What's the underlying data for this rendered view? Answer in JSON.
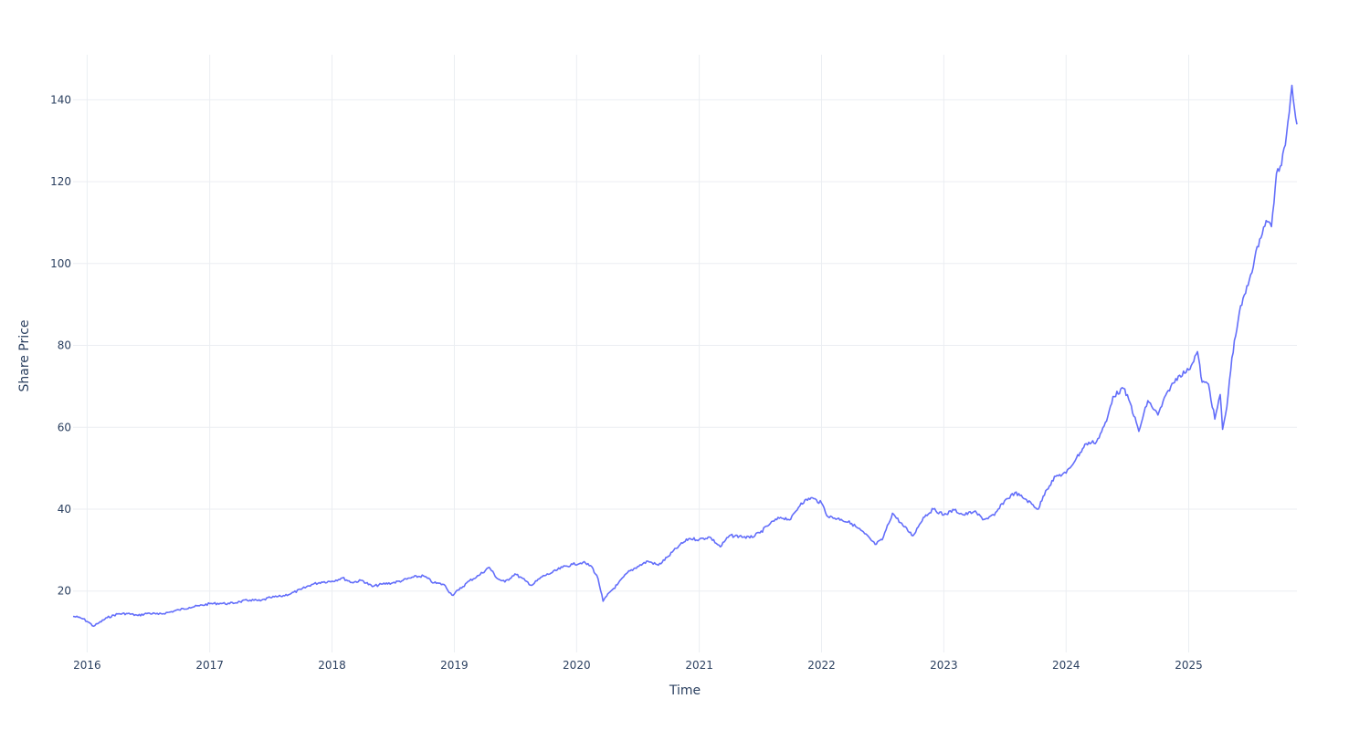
{
  "chart_data": {
    "type": "line",
    "title": "",
    "xlabel": "Time",
    "ylabel": "Share Price",
    "xlim": [
      "2015-11-20",
      "2025-11-20"
    ],
    "ylim": [
      5,
      151
    ],
    "x_ticks": [
      "2016",
      "2017",
      "2018",
      "2019",
      "2020",
      "2021",
      "2022",
      "2023",
      "2024",
      "2025"
    ],
    "y_ticks": [
      20,
      40,
      60,
      80,
      100,
      120,
      140
    ],
    "grid": true,
    "legend": "none",
    "line_color": "#636efa",
    "series": [
      {
        "points": [
          [
            "2015-11-20",
            13.8
          ],
          [
            "2015-12-05",
            13.6
          ],
          [
            "2015-12-20",
            13.2
          ],
          [
            "2016-01-05",
            12.4
          ],
          [
            "2016-01-20",
            11.4
          ],
          [
            "2016-02-05",
            12.2
          ],
          [
            "2016-03-01",
            13.5
          ],
          [
            "2016-04-01",
            14.4
          ],
          [
            "2016-05-01",
            14.5
          ],
          [
            "2016-06-01",
            14.0
          ],
          [
            "2016-07-01",
            14.6
          ],
          [
            "2016-08-01",
            14.3
          ],
          [
            "2016-09-01",
            14.8
          ],
          [
            "2016-10-01",
            15.4
          ],
          [
            "2016-11-01",
            16.0
          ],
          [
            "2016-12-01",
            16.4
          ],
          [
            "2017-01-01",
            16.9
          ],
          [
            "2017-02-01",
            17.0
          ],
          [
            "2017-03-01",
            16.9
          ],
          [
            "2017-04-01",
            17.4
          ],
          [
            "2017-05-01",
            17.8
          ],
          [
            "2017-06-01",
            17.6
          ],
          [
            "2017-07-01",
            18.4
          ],
          [
            "2017-08-01",
            18.7
          ],
          [
            "2017-09-01",
            19.4
          ],
          [
            "2017-10-01",
            20.4
          ],
          [
            "2017-11-01",
            21.6
          ],
          [
            "2017-12-01",
            22.2
          ],
          [
            "2018-01-01",
            22.4
          ],
          [
            "2018-02-01",
            23.2
          ],
          [
            "2018-03-01",
            22.1
          ],
          [
            "2018-04-01",
            22.6
          ],
          [
            "2018-05-01",
            21.1
          ],
          [
            "2018-06-01",
            21.7
          ],
          [
            "2018-07-01",
            22.0
          ],
          [
            "2018-08-01",
            22.6
          ],
          [
            "2018-09-01",
            23.4
          ],
          [
            "2018-10-01",
            23.7
          ],
          [
            "2018-11-01",
            22.0
          ],
          [
            "2018-12-01",
            21.6
          ],
          [
            "2018-12-25",
            19.0
          ],
          [
            "2019-01-15",
            20.3
          ],
          [
            "2019-02-15",
            22.5
          ],
          [
            "2019-03-15",
            23.8
          ],
          [
            "2019-04-15",
            25.8
          ],
          [
            "2019-05-10",
            23.0
          ],
          [
            "2019-06-01",
            22.2
          ],
          [
            "2019-07-01",
            24.2
          ],
          [
            "2019-08-01",
            22.5
          ],
          [
            "2019-08-20",
            21.4
          ],
          [
            "2019-09-20",
            23.5
          ],
          [
            "2019-10-20",
            24.5
          ],
          [
            "2019-11-20",
            25.8
          ],
          [
            "2019-12-20",
            26.5
          ],
          [
            "2020-01-20",
            27.0
          ],
          [
            "2020-02-15",
            26.0
          ],
          [
            "2020-03-05",
            23.0
          ],
          [
            "2020-03-20",
            17.5
          ],
          [
            "2020-04-10",
            19.8
          ],
          [
            "2020-05-01",
            21.5
          ],
          [
            "2020-06-01",
            24.5
          ],
          [
            "2020-07-01",
            26.0
          ],
          [
            "2020-08-01",
            27.3
          ],
          [
            "2020-09-01",
            26.3
          ],
          [
            "2020-10-01",
            28.5
          ],
          [
            "2020-11-01",
            31.0
          ],
          [
            "2020-12-01",
            32.8
          ],
          [
            "2021-01-01",
            32.6
          ],
          [
            "2021-02-01",
            33.2
          ],
          [
            "2021-03-05",
            30.8
          ],
          [
            "2021-04-01",
            33.5
          ],
          [
            "2021-05-01",
            33.4
          ],
          [
            "2021-06-01",
            33.0
          ],
          [
            "2021-07-01",
            34.2
          ],
          [
            "2021-08-01",
            36.5
          ],
          [
            "2021-09-01",
            38.0
          ],
          [
            "2021-10-01",
            37.5
          ],
          [
            "2021-11-01",
            41.5
          ],
          [
            "2021-12-01",
            42.8
          ],
          [
            "2022-01-01",
            41.5
          ],
          [
            "2022-01-20",
            38.2
          ],
          [
            "2022-03-01",
            37.5
          ],
          [
            "2022-04-01",
            36.5
          ],
          [
            "2022-05-10",
            34.0
          ],
          [
            "2022-06-10",
            31.4
          ],
          [
            "2022-07-01",
            32.5
          ],
          [
            "2022-08-01",
            39.0
          ],
          [
            "2022-09-01",
            36.0
          ],
          [
            "2022-10-01",
            33.5
          ],
          [
            "2022-11-01",
            38.0
          ],
          [
            "2022-12-01",
            40.0
          ],
          [
            "2023-01-01",
            38.6
          ],
          [
            "2023-02-01",
            39.8
          ],
          [
            "2023-03-01",
            38.6
          ],
          [
            "2023-04-01",
            39.4
          ],
          [
            "2023-05-01",
            37.5
          ],
          [
            "2023-06-01",
            38.5
          ],
          [
            "2023-07-01",
            42.0
          ],
          [
            "2023-08-01",
            44.0
          ],
          [
            "2023-09-01",
            42.5
          ],
          [
            "2023-10-10",
            40.0
          ],
          [
            "2023-11-01",
            44.5
          ],
          [
            "2023-12-01",
            48.0
          ],
          [
            "2024-01-01",
            48.8
          ],
          [
            "2024-02-01",
            52.5
          ],
          [
            "2024-03-01",
            56.0
          ],
          [
            "2024-04-01",
            56.5
          ],
          [
            "2024-05-01",
            61.5
          ],
          [
            "2024-05-20",
            67.5
          ],
          [
            "2024-06-20",
            69.5
          ],
          [
            "2024-07-10",
            66.0
          ],
          [
            "2024-08-05",
            59.0
          ],
          [
            "2024-09-01",
            66.5
          ],
          [
            "2024-10-01",
            63.0
          ],
          [
            "2024-11-01",
            69.0
          ],
          [
            "2024-12-01",
            72.5
          ],
          [
            "2025-01-01",
            74.0
          ],
          [
            "2025-01-27",
            78.5
          ],
          [
            "2025-02-10",
            71.0
          ],
          [
            "2025-03-01",
            70.5
          ],
          [
            "2025-03-20",
            62.0
          ],
          [
            "2025-04-05",
            68.0
          ],
          [
            "2025-04-12",
            59.5
          ],
          [
            "2025-04-25",
            65.0
          ],
          [
            "2025-05-10",
            77.0
          ],
          [
            "2025-06-01",
            88.0
          ],
          [
            "2025-07-01",
            96.0
          ],
          [
            "2025-08-01",
            106.0
          ],
          [
            "2025-08-20",
            110.5
          ],
          [
            "2025-09-05",
            109.0
          ],
          [
            "2025-09-20",
            122.0
          ],
          [
            "2025-10-05",
            124.0
          ],
          [
            "2025-10-20",
            131.5
          ],
          [
            "2025-11-05",
            143.5
          ],
          [
            "2025-11-20",
            134.0
          ]
        ]
      }
    ]
  }
}
